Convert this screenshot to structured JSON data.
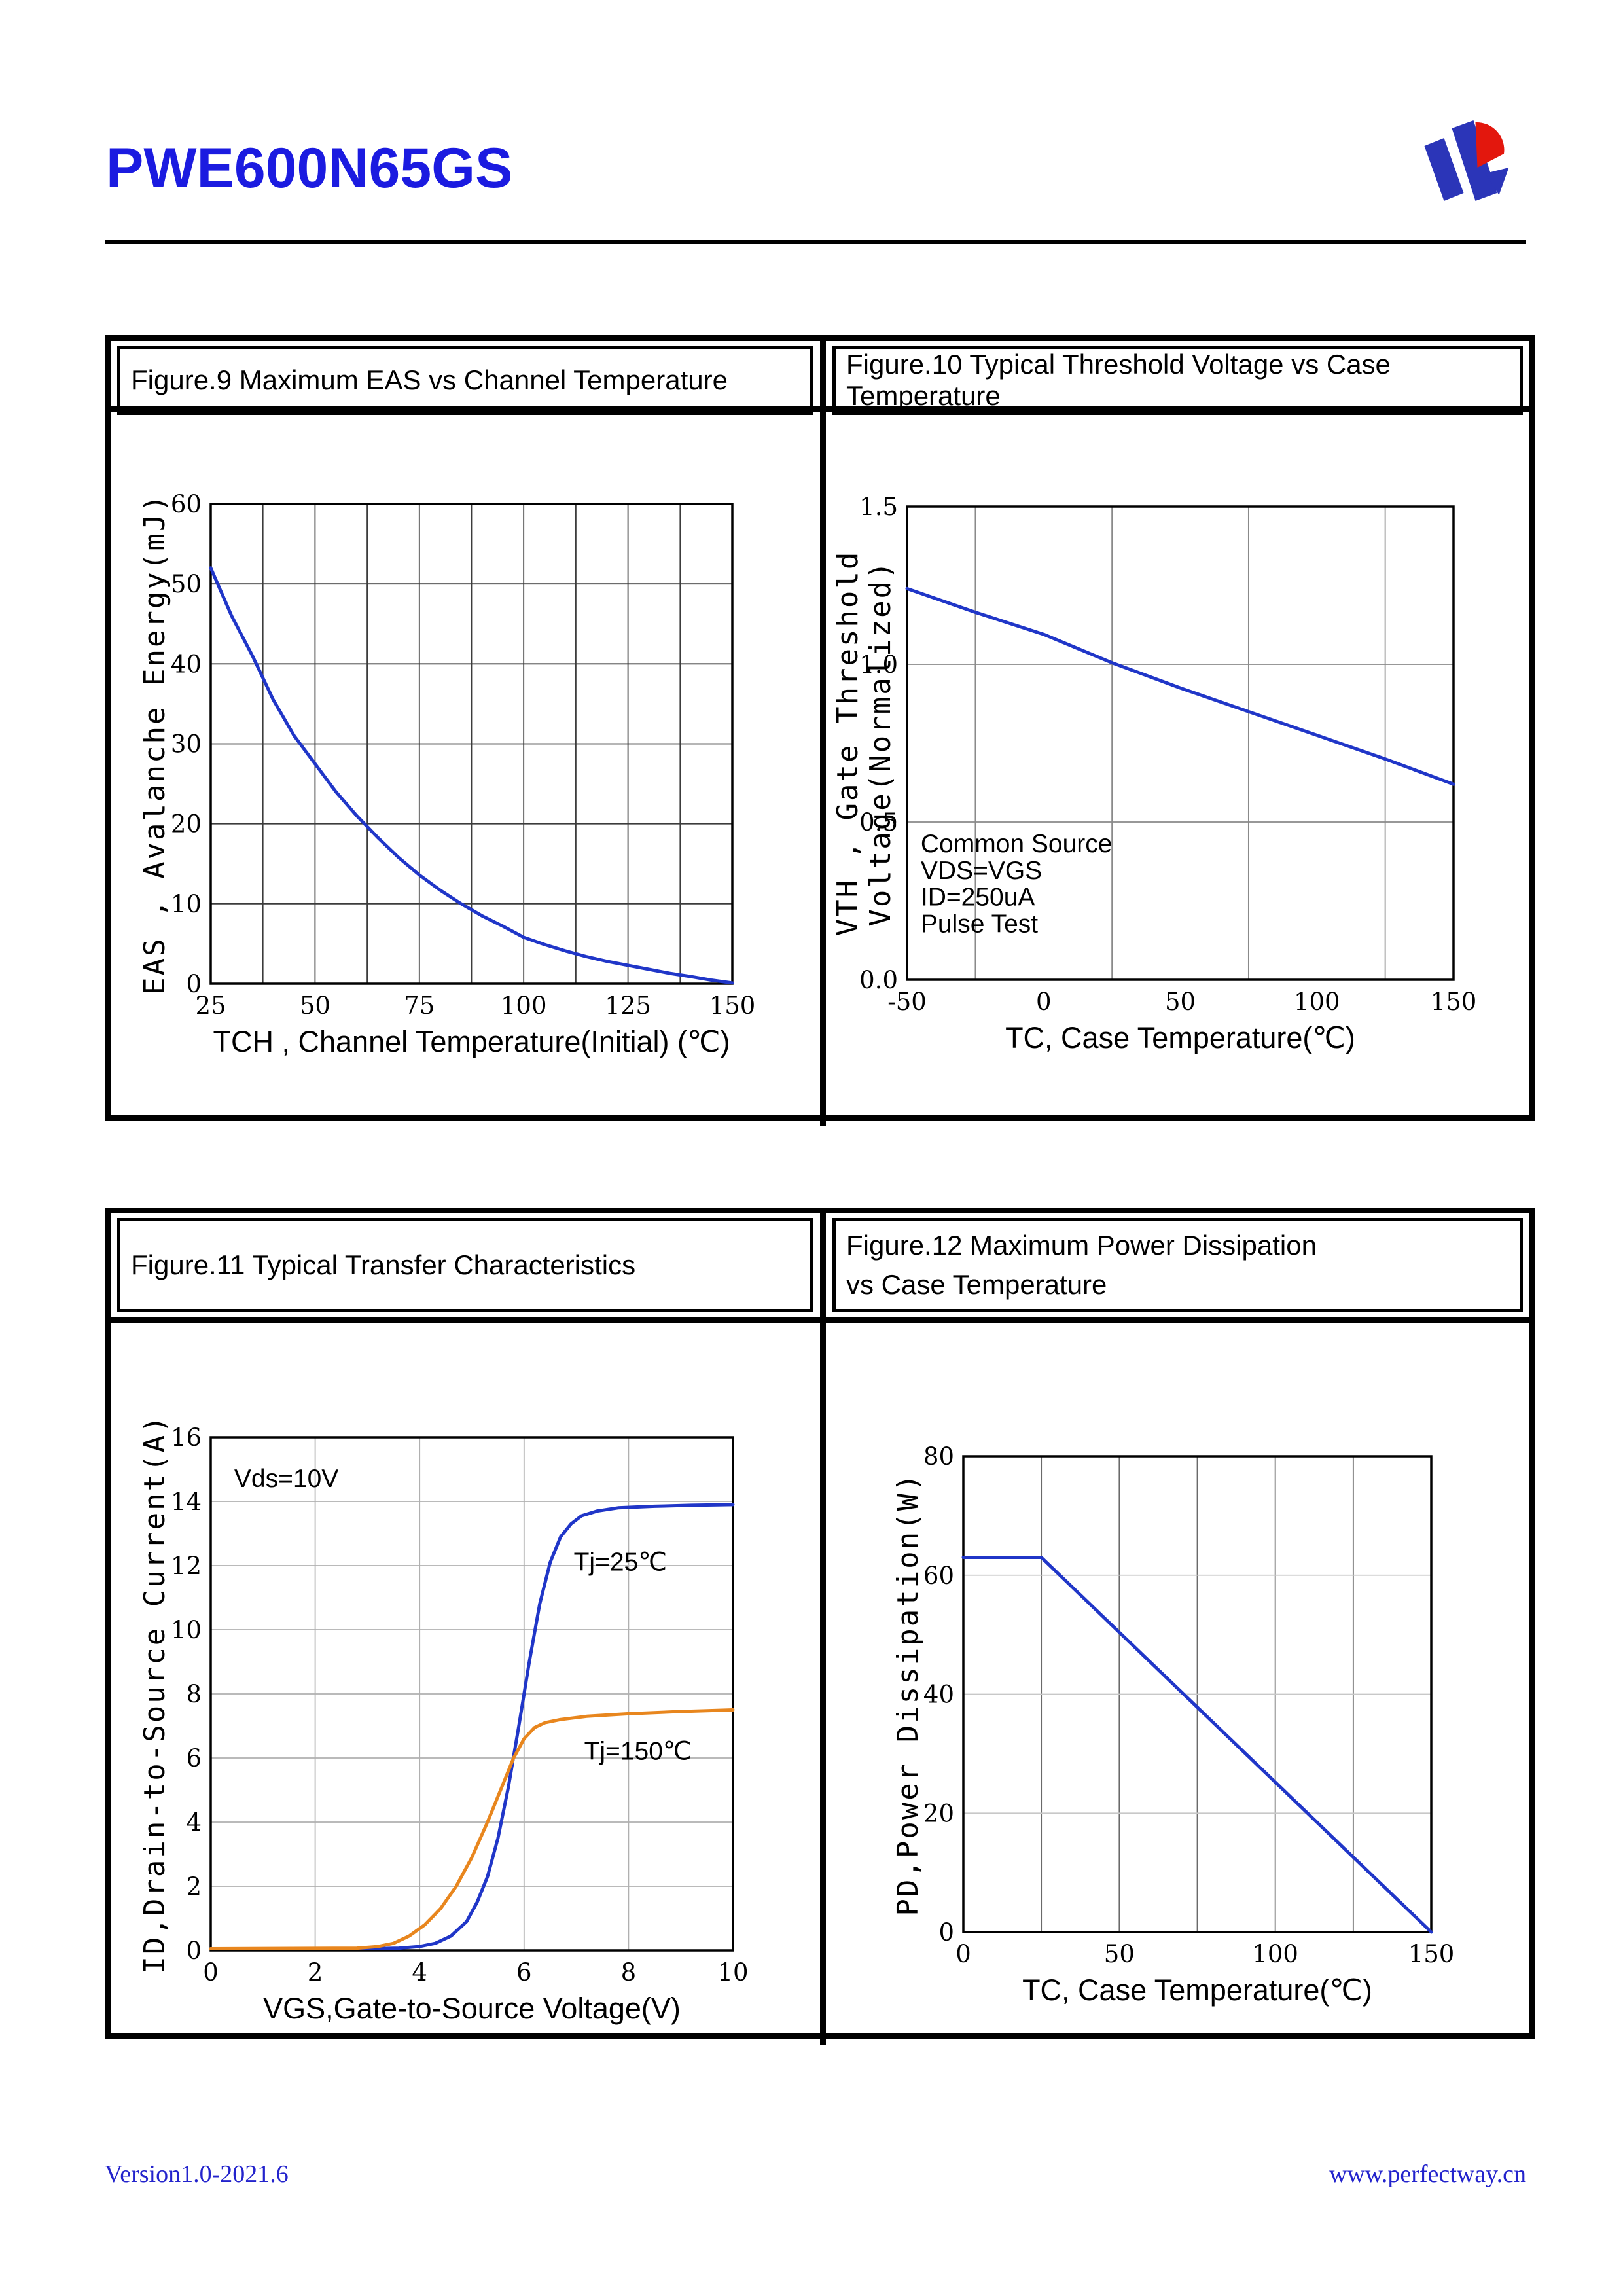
{
  "header": {
    "part_number": "PWE600N65GS"
  },
  "footer": {
    "left": "Version1.0-2021.6",
    "right": "www.perfectway.cn"
  },
  "colors": {
    "title_blue": "#1b1be0",
    "footer_blue": "#2323cc",
    "logo_blue": "#2b35b8",
    "logo_red": "#e3170d",
    "curve_blue": "#2036c8",
    "curve_orange": "#e8861e"
  },
  "figures": [
    {
      "title": "Figure.9 Maximum EAS vs Channel Temperature"
    },
    {
      "title": "Figure.10 Typical Threshold Voltage vs Case Temperature"
    },
    {
      "title": "Figure.11 Typical Transfer Characteristics"
    },
    {
      "title_lines": [
        "Figure.12 Maximum Power Dissipation",
        "vs Case Temperature"
      ]
    }
  ],
  "chart_data": [
    {
      "type": "line",
      "title": "Figure.9 Maximum EAS vs Channel Temperature",
      "xlabel": "TCH , Channel Temperature(Initial) (℃)",
      "ylabel_lines": [
        "EAS , Avalanche Energy(mJ)"
      ],
      "xlim": [
        25,
        150
      ],
      "ylim": [
        0,
        60
      ],
      "xticks": [
        25,
        50,
        75,
        100,
        125,
        150
      ],
      "xtick_labels": [
        "25",
        "50",
        "75",
        "100",
        "125",
        "150"
      ],
      "yticks": [
        0,
        10,
        20,
        30,
        40,
        50,
        60
      ],
      "ytick_labels": [
        "0",
        "10",
        "20",
        "30",
        "40",
        "50",
        "60"
      ],
      "grid_x": [
        37.5,
        50,
        62.5,
        75,
        87.5,
        100,
        112.5,
        125,
        137.5
      ],
      "grid_y": [
        10,
        20,
        30,
        40,
        50
      ],
      "grid_color": "#3c3c3c",
      "series": [
        {
          "name": "EAS",
          "color": "#2036c8",
          "points": [
            [
              25,
              52
            ],
            [
              30,
              46
            ],
            [
              35,
              41
            ],
            [
              40,
              35.5
            ],
            [
              45,
              31
            ],
            [
              50,
              27.5
            ],
            [
              55,
              24
            ],
            [
              60,
              21
            ],
            [
              65,
              18.3
            ],
            [
              70,
              15.8
            ],
            [
              75,
              13.6
            ],
            [
              80,
              11.7
            ],
            [
              85,
              10
            ],
            [
              90,
              8.5
            ],
            [
              95,
              7.2
            ],
            [
              100,
              5.8
            ],
            [
              105,
              4.9
            ],
            [
              110,
              4.1
            ],
            [
              115,
              3.4
            ],
            [
              120,
              2.8
            ],
            [
              125,
              2.3
            ],
            [
              130,
              1.8
            ],
            [
              135,
              1.3
            ],
            [
              140,
              0.9
            ],
            [
              145,
              0.45
            ],
            [
              150,
              0.1
            ]
          ]
        }
      ],
      "annotations": []
    },
    {
      "type": "line",
      "title": "Figure.10 Typical Threshold Voltage vs Case Temperature",
      "xlabel": "TC, Case Temperature(℃)",
      "ylabel_lines": [
        "VTH , Gate Threshold",
        "Voltage(Normalized)"
      ],
      "xlim": [
        -50,
        150
      ],
      "ylim": [
        0,
        1.5
      ],
      "xticks": [
        -50,
        0,
        50,
        100,
        150
      ],
      "xtick_labels": [
        "-50",
        "0",
        "50",
        "100",
        "150"
      ],
      "yticks": [
        0,
        0.5,
        1.0,
        1.5
      ],
      "ytick_labels": [
        "0.0",
        "0.5",
        "1.0",
        "1.5"
      ],
      "grid_x": [
        -25,
        25,
        75,
        125
      ],
      "grid_y": [
        0.5,
        1.0
      ],
      "grid_color": "#8a8a8a",
      "series": [
        {
          "name": "VTH",
          "color": "#2036c8",
          "points": [
            [
              -50,
              1.24
            ],
            [
              -25,
              1.165
            ],
            [
              0,
              1.095
            ],
            [
              25,
              1.005
            ],
            [
              50,
              0.925
            ],
            [
              75,
              0.85
            ],
            [
              100,
              0.775
            ],
            [
              125,
              0.7
            ],
            [
              150,
              0.62
            ]
          ]
        }
      ],
      "annotations": [
        {
          "text": "Common Source",
          "x": -45,
          "y": 0.405,
          "anchor": "start"
        },
        {
          "text": "VDS=VGS",
          "x": -45,
          "y": 0.32,
          "anchor": "start"
        },
        {
          "text": "ID=250uA",
          "x": -45,
          "y": 0.235,
          "anchor": "start"
        },
        {
          "text": "Pulse Test",
          "x": -45,
          "y": 0.15,
          "anchor": "start"
        }
      ]
    },
    {
      "type": "line",
      "title": "Figure.11 Typical Transfer Characteristics",
      "xlabel": "VGS,Gate-to-Source Voltage(V)",
      "ylabel_lines": [
        "ID,Drain-to-Source Current(A)"
      ],
      "xlim": [
        0,
        10
      ],
      "ylim": [
        0,
        16
      ],
      "xticks": [
        0,
        2,
        4,
        6,
        8,
        10
      ],
      "xtick_labels": [
        "0",
        "2",
        "4",
        "6",
        "8",
        "10"
      ],
      "yticks": [
        0,
        2,
        4,
        6,
        8,
        10,
        12,
        14,
        16
      ],
      "ytick_labels": [
        "0",
        "2",
        "4",
        "6",
        "8",
        "10",
        "12",
        "14",
        "16"
      ],
      "grid_x": [
        2,
        4,
        6,
        8
      ],
      "grid_y": [
        2,
        4,
        6,
        8,
        10,
        12,
        14
      ],
      "grid_color": "#b0b0b0",
      "series": [
        {
          "name": "Tj=25C",
          "color": "#2036c8",
          "points": [
            [
              0,
              0.05
            ],
            [
              3,
              0.05
            ],
            [
              3.6,
              0.07
            ],
            [
              4,
              0.12
            ],
            [
              4.3,
              0.22
            ],
            [
              4.6,
              0.45
            ],
            [
              4.9,
              0.9
            ],
            [
              5.1,
              1.5
            ],
            [
              5.3,
              2.3
            ],
            [
              5.5,
              3.5
            ],
            [
              5.7,
              5.1
            ],
            [
              5.9,
              7.0
            ],
            [
              6.1,
              9.0
            ],
            [
              6.3,
              10.8
            ],
            [
              6.5,
              12.1
            ],
            [
              6.7,
              12.9
            ],
            [
              6.9,
              13.3
            ],
            [
              7.1,
              13.55
            ],
            [
              7.4,
              13.7
            ],
            [
              7.8,
              13.8
            ],
            [
              8.5,
              13.85
            ],
            [
              9.2,
              13.88
            ],
            [
              10,
              13.9
            ]
          ]
        },
        {
          "name": "Tj=150C",
          "color": "#e8861e",
          "points": [
            [
              0,
              0.05
            ],
            [
              2.8,
              0.07
            ],
            [
              3.2,
              0.12
            ],
            [
              3.5,
              0.22
            ],
            [
              3.8,
              0.45
            ],
            [
              4.1,
              0.8
            ],
            [
              4.4,
              1.3
            ],
            [
              4.7,
              2.0
            ],
            [
              5.0,
              2.9
            ],
            [
              5.3,
              4.0
            ],
            [
              5.6,
              5.2
            ],
            [
              5.8,
              6.0
            ],
            [
              6.0,
              6.6
            ],
            [
              6.2,
              6.95
            ],
            [
              6.4,
              7.1
            ],
            [
              6.7,
              7.2
            ],
            [
              7.2,
              7.3
            ],
            [
              8,
              7.38
            ],
            [
              9,
              7.45
            ],
            [
              10,
              7.5
            ]
          ]
        }
      ],
      "annotations": [
        {
          "text": "Vds=10V",
          "x": 0.45,
          "y": 14.45,
          "anchor": "start"
        },
        {
          "text": "Tj=25℃",
          "x": 6.95,
          "y": 11.85,
          "anchor": "start"
        },
        {
          "text": "Tj=150℃",
          "x": 7.15,
          "y": 5.95,
          "anchor": "start"
        }
      ]
    },
    {
      "type": "line",
      "title": "Figure.12 Maximum Power Dissipation vs Case Temperature",
      "xlabel": "TC, Case Temperature(℃)",
      "ylabel_lines": [
        "PD,Power Dissipation(W)"
      ],
      "xlim": [
        0,
        150
      ],
      "ylim": [
        0,
        80
      ],
      "xticks": [
        0,
        50,
        100,
        150
      ],
      "xtick_labels": [
        "0",
        "50",
        "100",
        "150"
      ],
      "yticks": [
        0,
        20,
        40,
        60,
        80
      ],
      "ytick_labels": [
        "0",
        "20",
        "40",
        "60",
        "80"
      ],
      "grid_x": [
        25,
        50,
        75,
        100,
        125
      ],
      "grid_y": [
        20,
        40,
        60
      ],
      "grid_color": "#6a6a6a",
      "grid_color_y": "#c8c8c8",
      "series": [
        {
          "name": "PD",
          "color": "#2036c8",
          "points": [
            [
              0,
              63
            ],
            [
              25,
              63
            ],
            [
              150,
              0
            ]
          ]
        }
      ],
      "annotations": []
    }
  ]
}
